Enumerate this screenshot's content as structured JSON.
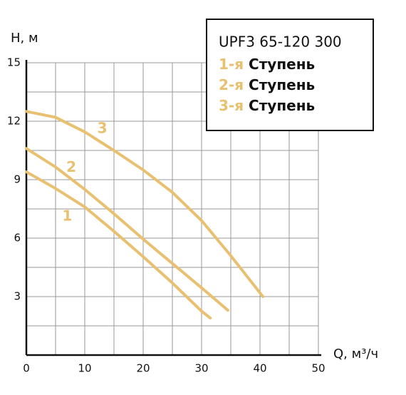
{
  "chart_data": {
    "type": "line",
    "title": "UPF3 65-120 300",
    "y_label": "H, м",
    "x_label": "Q, м³/ч",
    "xlim": [
      0,
      50
    ],
    "ylim": [
      0,
      15
    ],
    "xticks": [
      0,
      10,
      20,
      30,
      40,
      50
    ],
    "yticks": [
      3,
      6,
      9,
      12,
      15
    ],
    "minor_xticks": [
      5,
      15,
      25,
      35,
      45
    ],
    "minor_yticks": [
      1.5,
      4.5,
      7.5,
      10.5,
      13.5
    ],
    "grid": true,
    "series": [
      {
        "name_prefix": "1-я",
        "name": "Ступень",
        "label": "1",
        "color": "#e8c070",
        "x": [
          0,
          5,
          10,
          15,
          20,
          25,
          30,
          31.5
        ],
        "values": [
          9.4,
          8.55,
          7.6,
          6.35,
          5.05,
          3.7,
          2.25,
          1.9
        ]
      },
      {
        "name_prefix": "2-я",
        "name": "Ступень",
        "label": "2",
        "color": "#e8c070",
        "x": [
          0,
          5,
          10,
          15,
          20,
          25,
          30,
          34.5
        ],
        "values": [
          10.6,
          9.65,
          8.5,
          7.25,
          5.95,
          4.7,
          3.45,
          2.3
        ]
      },
      {
        "name_prefix": "3-я",
        "name": "Ступень",
        "label": "3",
        "color": "#e8c070",
        "x": [
          0,
          5,
          10,
          15,
          20,
          25,
          30,
          35,
          40.5
        ],
        "values": [
          12.5,
          12.2,
          11.45,
          10.5,
          9.5,
          8.35,
          6.9,
          5.1,
          3.0
        ]
      }
    ]
  }
}
